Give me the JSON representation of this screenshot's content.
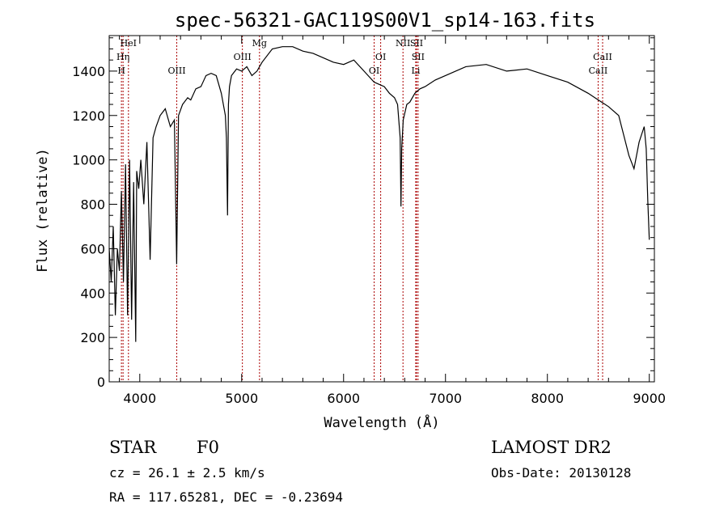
{
  "chart_data": {
    "type": "line",
    "title": "spec-56321-GAC119S00V1_sp14-163.fits",
    "xlabel": "Wavelength (Å)",
    "ylabel": "Flux (relative)",
    "xlim": [
      3700,
      9050
    ],
    "ylim": [
      0,
      1560
    ],
    "x_ticks": [
      4000,
      5000,
      6000,
      7000,
      8000,
      9000
    ],
    "x_tick_labels": [
      "4000",
      "5000",
      "6000",
      "7000",
      "8000",
      "9000"
    ],
    "y_ticks": [
      0,
      200,
      400,
      600,
      800,
      1000,
      1200,
      1400
    ],
    "y_tick_labels": [
      "0",
      "200",
      "400",
      "600",
      "800",
      "1000",
      "1200",
      "1400"
    ],
    "grid": false,
    "series": [
      {
        "x": [
          3700,
          3720,
          3740,
          3760,
          3780,
          3800,
          3820,
          3840,
          3860,
          3880,
          3900,
          3920,
          3940,
          3960,
          3970,
          3990,
          4010,
          4040,
          4070,
          4102,
          4130,
          4160,
          4200,
          4250,
          4300,
          4340,
          4362,
          4380,
          4420,
          4470,
          4500,
          4550,
          4600,
          4650,
          4700,
          4750,
          4800,
          4840,
          4850,
          4861,
          4870,
          4880,
          4900,
          4950,
          5000,
          5050,
          5100,
          5150,
          5200,
          5300,
          5400,
          5500,
          5600,
          5700,
          5800,
          5900,
          6000,
          6100,
          6200,
          6300,
          6400,
          6450,
          6500,
          6530,
          6555,
          6563,
          6570,
          6585,
          6620,
          6650,
          6700,
          6750,
          6800,
          6900,
          7000,
          7200,
          7400,
          7600,
          7800,
          8000,
          8200,
          8400,
          8500,
          8600,
          8700,
          8750,
          8800,
          8850,
          8900,
          8950,
          8970,
          8985,
          9000
        ],
        "y": [
          600,
          450,
          700,
          300,
          600,
          500,
          860,
          450,
          980,
          300,
          1000,
          280,
          900,
          180,
          950,
          870,
          1000,
          800,
          1080,
          550,
          1100,
          1150,
          1200,
          1230,
          1150,
          1180,
          530,
          1200,
          1250,
          1280,
          1270,
          1320,
          1330,
          1380,
          1390,
          1380,
          1300,
          1200,
          1100,
          750,
          1250,
          1330,
          1380,
          1410,
          1400,
          1420,
          1380,
          1400,
          1440,
          1500,
          1510,
          1510,
          1490,
          1480,
          1460,
          1440,
          1430,
          1450,
          1400,
          1350,
          1330,
          1300,
          1280,
          1250,
          1100,
          790,
          1050,
          1180,
          1250,
          1260,
          1300,
          1320,
          1330,
          1360,
          1380,
          1420,
          1430,
          1400,
          1410,
          1380,
          1350,
          1300,
          1270,
          1240,
          1200,
          1110,
          1020,
          960,
          1080,
          1150,
          1050,
          820,
          640
        ]
      }
    ],
    "line_markers": [
      {
        "label": "HeI",
        "wavelength": 3889
      },
      {
        "label": "Hη",
        "wavelength": 3836
      },
      {
        "label": "H",
        "wavelength": 3820
      },
      {
        "label": "OIII",
        "wavelength": 4363
      },
      {
        "label": "OIII",
        "wavelength": 5007
      },
      {
        "label": "Mg",
        "wavelength": 5175
      },
      {
        "label": "OI",
        "wavelength": 6300
      },
      {
        "label": "OI",
        "wavelength": 6364
      },
      {
        "label": "NII",
        "wavelength": 6583
      },
      {
        "label": "SII",
        "wavelength": 6716
      },
      {
        "label": "SII",
        "wavelength": 6731
      },
      {
        "label": "Li",
        "wavelength": 6708
      },
      {
        "label": "CaII",
        "wavelength": 8542
      },
      {
        "label": "CaII",
        "wavelength": 8498
      }
    ],
    "colors": {
      "spectrum": "#000000",
      "markers": "#aa0000",
      "frame": "#000000"
    }
  },
  "footer": {
    "class_label": "STAR",
    "subclass": "F0",
    "survey": "LAMOST DR2",
    "cz": "cz = 26.1 ± 2.5 km/s",
    "obs_date": "Obs-Date: 20130128",
    "radec": "RA = 117.65281, DEC =  -0.23694"
  }
}
